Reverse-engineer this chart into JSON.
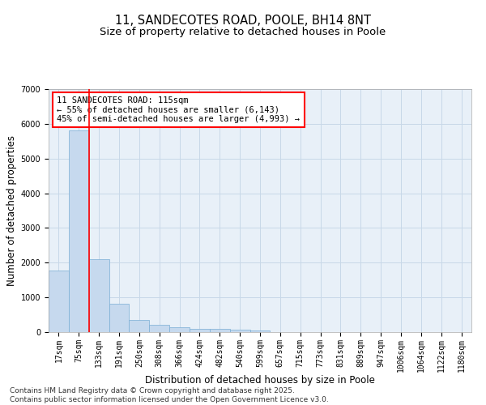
{
  "title_line1": "11, SANDECOTES ROAD, POOLE, BH14 8NT",
  "title_line2": "Size of property relative to detached houses in Poole",
  "xlabel": "Distribution of detached houses by size in Poole",
  "ylabel": "Number of detached properties",
  "categories": [
    "17sqm",
    "75sqm",
    "133sqm",
    "191sqm",
    "250sqm",
    "308sqm",
    "366sqm",
    "424sqm",
    "482sqm",
    "540sqm",
    "599sqm",
    "657sqm",
    "715sqm",
    "773sqm",
    "831sqm",
    "889sqm",
    "947sqm",
    "1006sqm",
    "1064sqm",
    "1122sqm",
    "1180sqm"
  ],
  "values": [
    1780,
    5820,
    2100,
    820,
    360,
    210,
    130,
    100,
    90,
    70,
    50,
    0,
    0,
    0,
    0,
    0,
    0,
    0,
    0,
    0,
    0
  ],
  "bar_color": "#c6d9ee",
  "bar_edge_color": "#7aadd4",
  "grid_color": "#c8d8e8",
  "background_color": "#e8f0f8",
  "vline_x_index": 1.5,
  "vline_color": "red",
  "annotation_title": "11 SANDECOTES ROAD: 115sqm",
  "annotation_line1": "← 55% of detached houses are smaller (6,143)",
  "annotation_line2": "45% of semi-detached houses are larger (4,993) →",
  "ylim": [
    0,
    7000
  ],
  "yticks": [
    0,
    1000,
    2000,
    3000,
    4000,
    5000,
    6000,
    7000
  ],
  "footer_line1": "Contains HM Land Registry data © Crown copyright and database right 2025.",
  "footer_line2": "Contains public sector information licensed under the Open Government Licence v3.0.",
  "title_fontsize": 10.5,
  "subtitle_fontsize": 9.5,
  "axis_label_fontsize": 8.5,
  "tick_fontsize": 7,
  "annotation_fontsize": 7.5,
  "footer_fontsize": 6.5
}
